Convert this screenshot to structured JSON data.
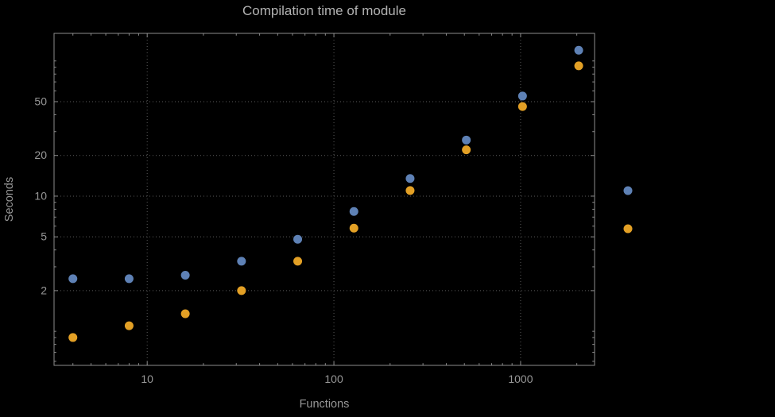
{
  "title": "Compilation time of module",
  "colors": {
    "background": "#000000",
    "frame": "#8c8c8c",
    "grid": "#5a5a5a",
    "tick_text": "#979797",
    "title_text": "#b2b2b2",
    "series_blue": "#5E81B5",
    "series_orange": "#E3A025"
  },
  "chart_data": {
    "type": "scatter",
    "title": "Compilation time of module",
    "xlabel": "Functions",
    "ylabel": "Seconds",
    "x_scale": "log",
    "y_scale": "log",
    "grid": true,
    "grid_style": "dotted",
    "xlim": [
      3.17,
      2490
    ],
    "ylim": [
      0.56,
      160
    ],
    "x_ticks": [
      10,
      100,
      1000
    ],
    "x_tick_labels": [
      "10",
      "100",
      "1000"
    ],
    "y_ticks": [
      2,
      5,
      10,
      20,
      50
    ],
    "y_tick_labels": [
      "2",
      "5",
      "10",
      "20",
      "50"
    ],
    "x": [
      4,
      8,
      16,
      32,
      64,
      128,
      256,
      512,
      1024,
      2048
    ],
    "series": [
      {
        "name": "blue",
        "color": "#5E81B5",
        "values": [
          2.45,
          2.45,
          2.6,
          3.3,
          4.8,
          7.7,
          13.5,
          26,
          55,
          120
        ]
      },
      {
        "name": "orange",
        "color": "#E3A025",
        "values": [
          0.9,
          1.1,
          1.35,
          2.0,
          3.3,
          5.8,
          11,
          22,
          46,
          92
        ]
      }
    ],
    "legend": {
      "position": "right-outside",
      "labels_visible": false,
      "markers": [
        {
          "series": "blue",
          "color": "#5E81B5"
        },
        {
          "series": "orange",
          "color": "#E3A025"
        }
      ]
    }
  }
}
